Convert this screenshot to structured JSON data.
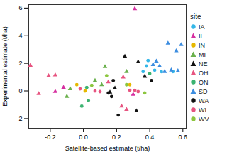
{
  "chart_data": {
    "type": "scatter",
    "x_label": "Satellite-based estimate (t/ha)",
    "y_label": "Experimental estimate (t/ha)",
    "legend_title": "site",
    "legend": "right",
    "grid": false,
    "xlim": [
      -0.33,
      0.62
    ],
    "ylim": [
      -2.7,
      6.25
    ],
    "xticks": [
      -0.2,
      {
        "value": 0,
        "label": "0.0"
      },
      0.2,
      0.4,
      0.6
    ],
    "yticks": [
      -2,
      0,
      2,
      4,
      6
    ],
    "series": [
      {
        "name": "IA",
        "color": "#35b7e8",
        "marker": "circle",
        "x": [
          0.36,
          0.38,
          0.43,
          0.47,
          0.54,
          0.39
        ],
        "values": [
          1.4,
          1.8,
          1.5,
          1.4,
          1.4,
          2.2
        ]
      },
      {
        "name": "IL",
        "color": "#d62fa0",
        "marker": "triangle",
        "x": [
          -0.17,
          -0.12,
          0.3,
          0.31
        ],
        "values": [
          -0.05,
          0.25,
          -0.25,
          5.95
        ]
      },
      {
        "name": "IN",
        "color": "#e6b800",
        "marker": "circle",
        "x": [
          -0.04,
          0.01,
          0.28
        ],
        "values": [
          0.45,
          0,
          0.45
        ]
      },
      {
        "name": "MI",
        "color": "#6ab04c",
        "marker": "triangle",
        "x": [
          -0.1,
          -0.08,
          0.07,
          0.11,
          0.13,
          0.26
        ],
        "values": [
          -0.4,
          0.15,
          0.75,
          0.45,
          1.75,
          1.4
        ]
      },
      {
        "name": "NE",
        "color": "#111111",
        "marker": "triangle",
        "x": [
          0.16,
          0.19,
          0.25,
          0.32,
          0.33,
          0.37
        ],
        "values": [
          -0.1,
          0.2,
          2.5,
          -1.45,
          2.1,
          1.05
        ]
      },
      {
        "name": "OH",
        "color": "#e75480",
        "marker": "triangle",
        "x": [
          -0.32,
          -0.27,
          -0.21,
          -0.17,
          0.15,
          0.23,
          0.24,
          0.26
        ],
        "values": [
          1.85,
          -0.2,
          1.1,
          1.15,
          0.65,
          -1.1,
          1.0,
          -1.35
        ]
      },
      {
        "name": "ON",
        "color": "#3cb371",
        "marker": "circle",
        "x": [
          -0.01,
          0.02,
          0.03,
          0.4
        ],
        "values": [
          -1.1,
          0.25,
          -0.7,
          1.25
        ]
      },
      {
        "name": "SD",
        "color": "#3c8de0",
        "marker": "triangle",
        "x": [
          0.42,
          0.44,
          0.46,
          0.49,
          0.51,
          0.53,
          0.56,
          0.57,
          0.59
        ],
        "values": [
          1.9,
          2.15,
          1.8,
          1.4,
          3.45,
          1.5,
          2.9,
          1.45,
          3.35
        ]
      },
      {
        "name": "WA",
        "color": "#111111",
        "marker": "circle",
        "x": [
          0.15,
          0.17,
          0.18,
          0.21,
          0.41
        ],
        "values": [
          -0.15,
          -0.4,
          0.75,
          -1.75,
          0.75
        ]
      },
      {
        "name": "WI",
        "color": "#e75480",
        "marker": "circle",
        "x": [
          -0.02,
          0.07,
          0.1,
          0.28,
          0.31,
          0.33
        ],
        "values": [
          0.15,
          0,
          -0.05,
          0.05,
          0.05,
          -0.05
        ]
      },
      {
        "name": "WV",
        "color": "#8cc63f",
        "marker": "circle",
        "x": [
          0.05,
          0.14,
          0.26,
          0.37
        ],
        "values": [
          0.4,
          1.1,
          0.45,
          -0.15
        ]
      }
    ]
  }
}
